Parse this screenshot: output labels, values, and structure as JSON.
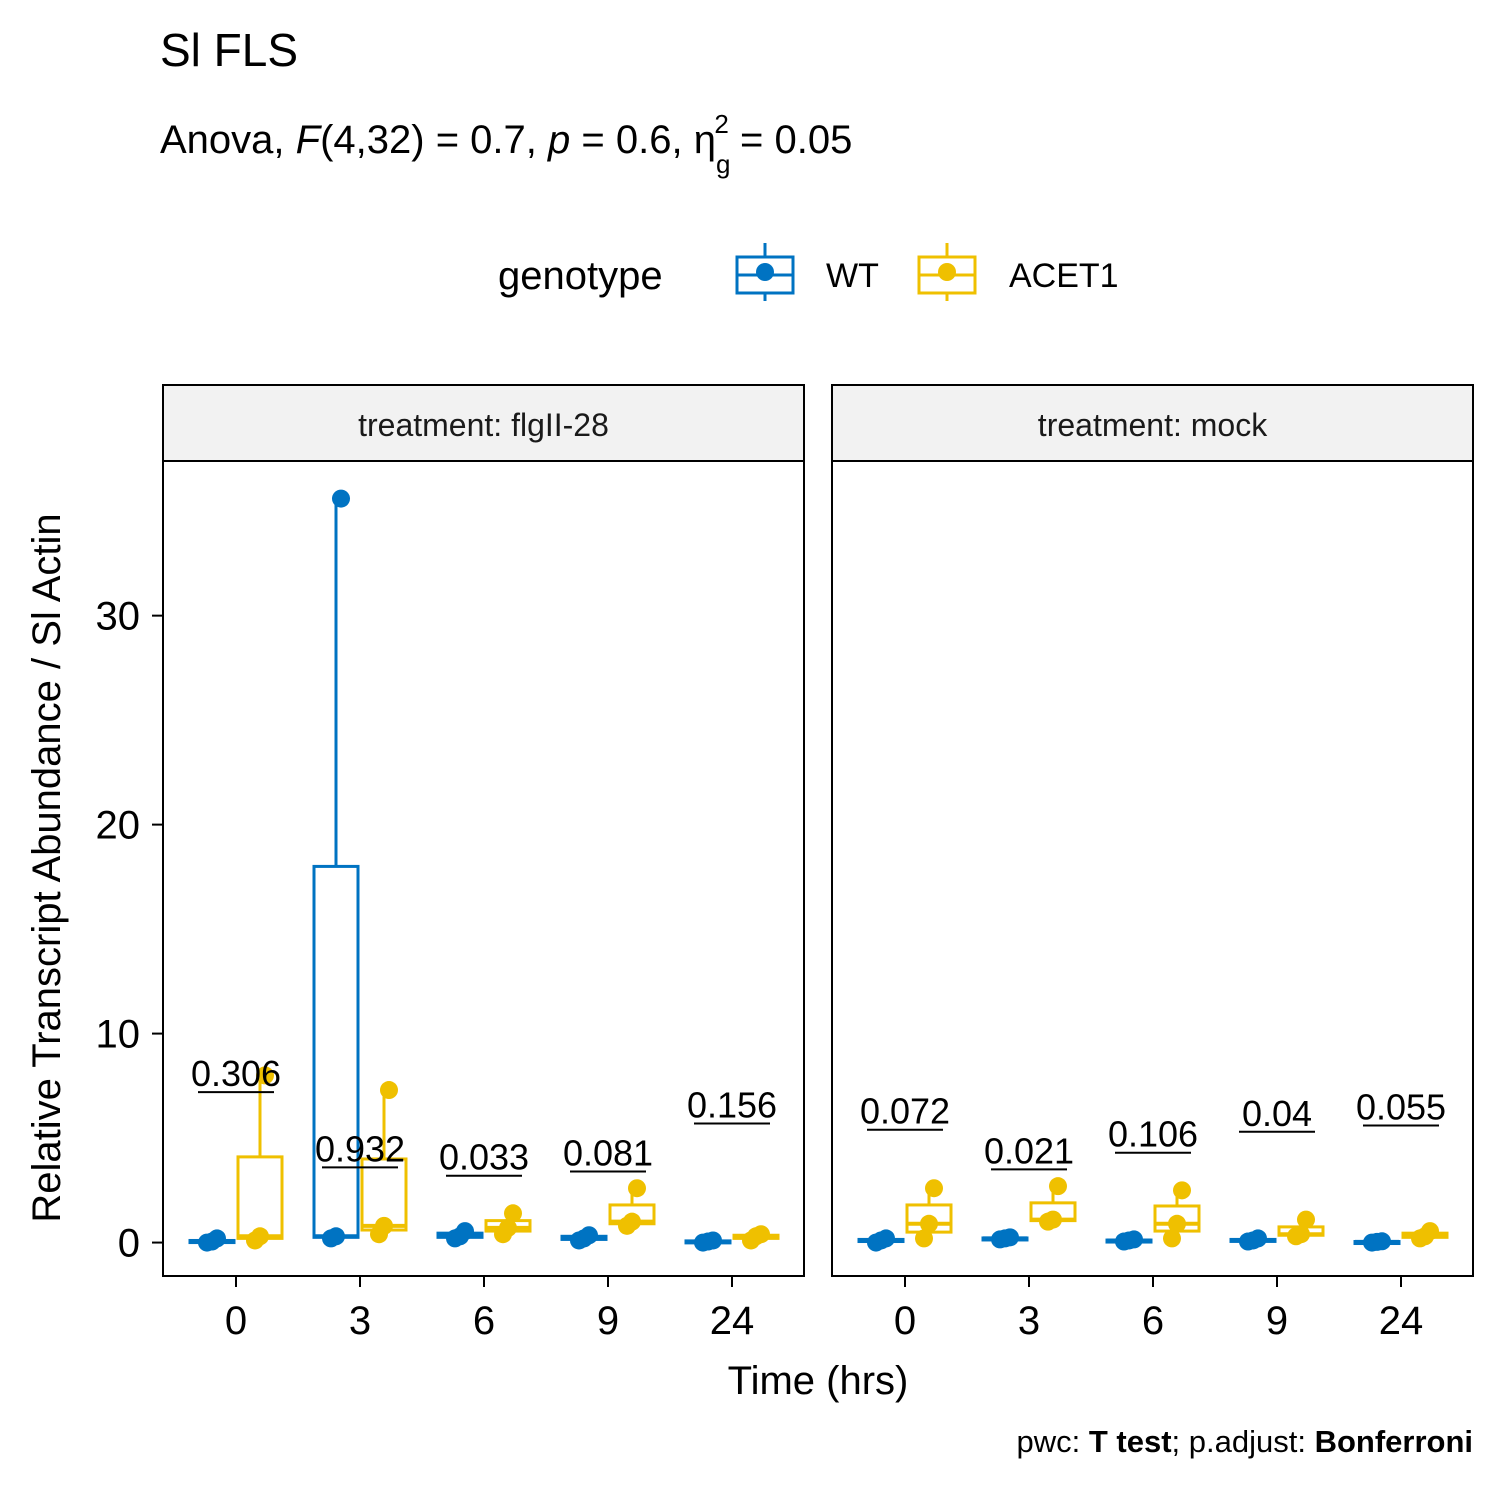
{
  "chart_data": {
    "type": "box",
    "title": "Sl FLS",
    "subtitle": {
      "prefix": "Anova, ",
      "f_symbol": "F",
      "f_df": "(4,32) = 0.7, ",
      "p_symbol": "p",
      "p_value": " = 0.6, ",
      "eta_symbol": "η",
      "eta_sub": "g",
      "eta_sup": "2",
      "eta_value": " = 0.05"
    },
    "legend": {
      "title": "genotype",
      "placement": "top",
      "items": [
        {
          "label": "WT",
          "color": "#0073C2"
        },
        {
          "label": "ACET1",
          "color": "#EFC000"
        }
      ]
    },
    "xlabel": "Time (hrs)",
    "ylabel": "Relative Transcript Abundance / Sl Actin",
    "categories": [
      "0",
      "3",
      "6",
      "9",
      "24"
    ],
    "yticks": [
      0,
      10,
      20,
      30
    ],
    "ylim": [
      -1.6,
      37.4
    ],
    "caption": {
      "prefix": "pwc: ",
      "test": "T test",
      "mid": "; p.adjust: ",
      "method": "Bonferroni"
    },
    "panels": [
      {
        "strip": "treatment: flgII-28",
        "pvalues": [
          {
            "label": "0.306",
            "y": 7.2
          },
          {
            "label": "0.932",
            "y": 3.6
          },
          {
            "label": "0.033",
            "y": 3.2
          },
          {
            "label": "0.081",
            "y": 3.4
          },
          {
            "label": "0.156",
            "y": 5.7
          }
        ],
        "series": [
          {
            "name": "WT",
            "boxes": [
              {
                "min": 0.0,
                "q1": 0.0,
                "median": 0.05,
                "q3": 0.1,
                "max": 0.2,
                "points": [
                  0.0,
                  0.05,
                  0.2
                ]
              },
              {
                "min": 0.2,
                "q1": 0.25,
                "median": 0.3,
                "q3": 18.0,
                "max": 35.6,
                "points": [
                  0.2,
                  0.3,
                  35.6
                ]
              },
              {
                "min": 0.2,
                "q1": 0.25,
                "median": 0.3,
                "q3": 0.45,
                "max": 0.55,
                "points": [
                  0.2,
                  0.3,
                  0.55
                ]
              },
              {
                "min": 0.1,
                "q1": 0.15,
                "median": 0.2,
                "q3": 0.3,
                "max": 0.35,
                "points": [
                  0.1,
                  0.2,
                  0.35
                ]
              },
              {
                "min": 0.0,
                "q1": 0.03,
                "median": 0.05,
                "q3": 0.08,
                "max": 0.1,
                "points": [
                  0.0,
                  0.05,
                  0.1
                ]
              }
            ]
          },
          {
            "name": "ACET1",
            "boxes": [
              {
                "min": 0.1,
                "q1": 0.2,
                "median": 0.3,
                "q3": 4.1,
                "max": 8.0,
                "points": [
                  0.1,
                  0.3,
                  8.0
                ]
              },
              {
                "min": 0.4,
                "q1": 0.6,
                "median": 0.8,
                "q3": 4.0,
                "max": 7.3,
                "points": [
                  0.4,
                  0.8,
                  7.3
                ]
              },
              {
                "min": 0.4,
                "q1": 0.55,
                "median": 0.7,
                "q3": 1.05,
                "max": 1.4,
                "points": [
                  0.4,
                  0.7,
                  1.4
                ]
              },
              {
                "min": 0.8,
                "q1": 0.9,
                "median": 1.0,
                "q3": 1.8,
                "max": 2.6,
                "points": [
                  0.8,
                  1.0,
                  2.6
                ]
              },
              {
                "min": 0.1,
                "q1": 0.2,
                "median": 0.3,
                "q3": 0.35,
                "max": 0.4,
                "points": [
                  0.1,
                  0.3,
                  0.4
                ]
              }
            ]
          }
        ]
      },
      {
        "strip": "treatment: mock",
        "pvalues": [
          {
            "label": "0.072",
            "y": 5.4
          },
          {
            "label": "0.021",
            "y": 3.5
          },
          {
            "label": "0.106",
            "y": 4.3
          },
          {
            "label": "0.04",
            "y": 5.3
          },
          {
            "label": "0.055",
            "y": 5.6
          }
        ],
        "series": [
          {
            "name": "WT",
            "boxes": [
              {
                "min": 0.0,
                "q1": 0.05,
                "median": 0.1,
                "q3": 0.15,
                "max": 0.2,
                "points": [
                  0.0,
                  0.1,
                  0.2
                ]
              },
              {
                "min": 0.15,
                "q1": 0.18,
                "median": 0.2,
                "q3": 0.22,
                "max": 0.25,
                "points": [
                  0.15,
                  0.2,
                  0.25
                ]
              },
              {
                "min": 0.05,
                "q1": 0.07,
                "median": 0.1,
                "q3": 0.12,
                "max": 0.15,
                "points": [
                  0.05,
                  0.1,
                  0.15
                ]
              },
              {
                "min": 0.05,
                "q1": 0.08,
                "median": 0.1,
                "q3": 0.15,
                "max": 0.2,
                "points": [
                  0.05,
                  0.1,
                  0.2
                ]
              },
              {
                "min": 0.0,
                "q1": 0.02,
                "median": 0.03,
                "q3": 0.05,
                "max": 0.06,
                "points": [
                  0.0,
                  0.03,
                  0.06
                ]
              }
            ]
          },
          {
            "name": "ACET1",
            "boxes": [
              {
                "min": 0.2,
                "q1": 0.5,
                "median": 0.9,
                "q3": 1.8,
                "max": 2.6,
                "points": [
                  0.2,
                  0.9,
                  2.6
                ]
              },
              {
                "min": 1.0,
                "q1": 1.05,
                "median": 1.1,
                "q3": 1.9,
                "max": 2.7,
                "points": [
                  1.0,
                  1.1,
                  2.7
                ]
              },
              {
                "min": 0.2,
                "q1": 0.55,
                "median": 0.9,
                "q3": 1.75,
                "max": 2.5,
                "points": [
                  0.2,
                  0.9,
                  2.5
                ]
              },
              {
                "min": 0.3,
                "q1": 0.35,
                "median": 0.4,
                "q3": 0.75,
                "max": 1.1,
                "points": [
                  0.3,
                  0.4,
                  1.1
                ]
              },
              {
                "min": 0.2,
                "q1": 0.25,
                "median": 0.3,
                "q3": 0.45,
                "max": 0.55,
                "points": [
                  0.2,
                  0.3,
                  0.55
                ]
              }
            ]
          }
        ]
      }
    ]
  }
}
